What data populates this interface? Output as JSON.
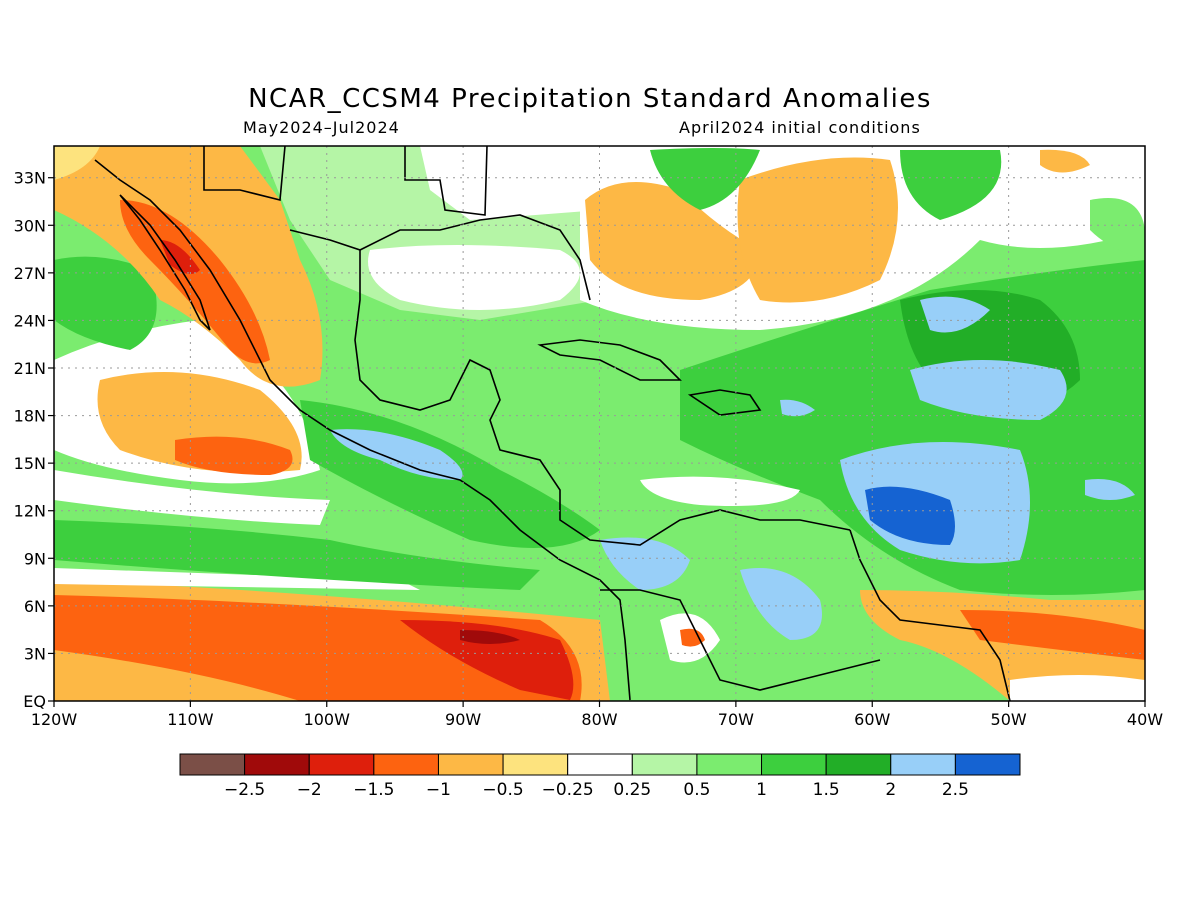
{
  "title": "NCAR_CCSM4 Precipitation Standard Anomalies",
  "subtitle_left": "May2024–Jul2024",
  "subtitle_right": "April2024 initial conditions",
  "lat_labels": [
    "33N",
    "30N",
    "27N",
    "24N",
    "21N",
    "18N",
    "15N",
    "12N",
    "9N",
    "6N",
    "3N",
    "EQ"
  ],
  "lat_values": [
    33,
    30,
    27,
    24,
    21,
    18,
    15,
    12,
    9,
    6,
    3,
    0
  ],
  "lon_labels": [
    "120W",
    "110W",
    "100W",
    "90W",
    "80W",
    "70W",
    "60W",
    "50W",
    "40W"
  ],
  "lon_values": [
    -120,
    -110,
    -100,
    -90,
    -80,
    -70,
    -60,
    -50,
    -40
  ],
  "extent": {
    "lon_min": -120,
    "lon_max": -40,
    "lat_min": 0,
    "lat_max": 35
  },
  "legend": {
    "colors": [
      "#7b4f47",
      "#a00a0a",
      "#de1f0c",
      "#fd6310",
      "#fdb845",
      "#fde37e",
      "#ffffff",
      "#b5f5a6",
      "#7bec6f",
      "#3dcf3e",
      "#22ae27",
      "#98cff8",
      "#1563d2"
    ],
    "labels": [
      "−2.5",
      "−2",
      "−1.5",
      "−1",
      "−0.5",
      "−0.25",
      "0.25",
      "0.5",
      "1",
      "1.5",
      "2",
      "2.5"
    ]
  },
  "colors": {
    "dry_strong": "#a00a0a",
    "dry": "#fd6310",
    "dry_light": "#fdb845",
    "neutral": "#ffffff",
    "wet_light": "#b5f5a6",
    "wet": "#3dcf3e",
    "wet_strong": "#98cff8",
    "wet_max": "#1563d2"
  }
}
